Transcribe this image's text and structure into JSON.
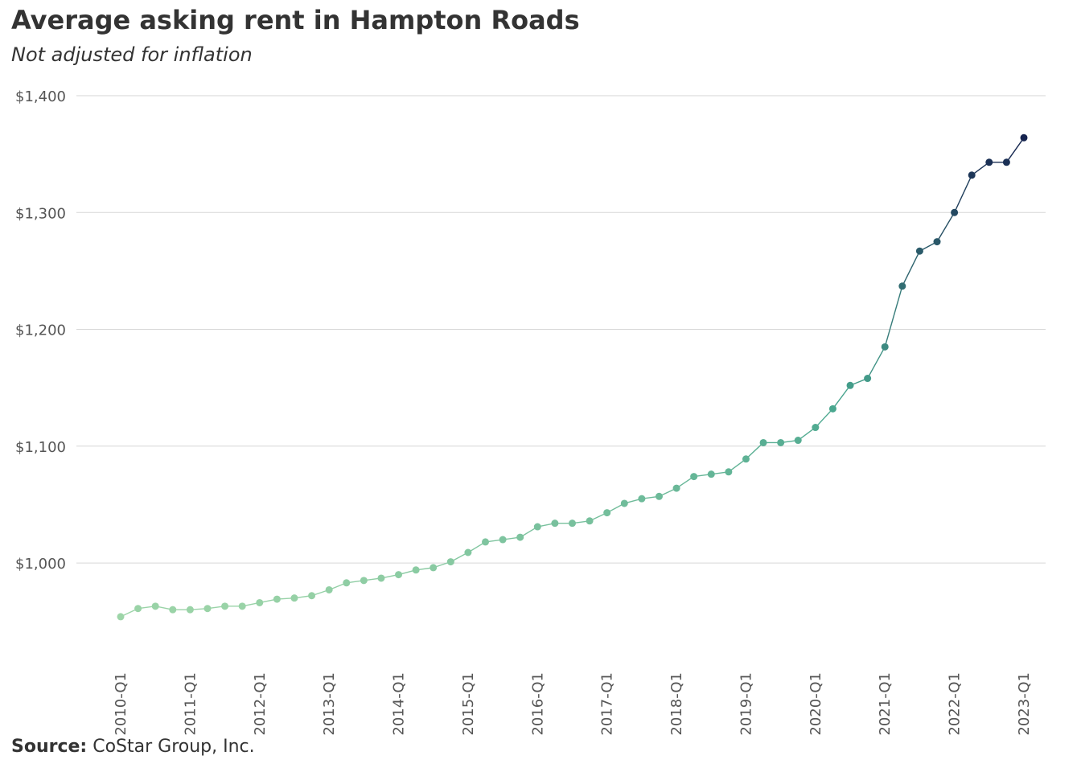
{
  "title": "Average asking rent in Hampton Roads",
  "subtitle": "Not adjusted  for inflation",
  "source_label": "Source:",
  "source_text": "CoStar Group, Inc.",
  "chart_data": {
    "type": "line",
    "title": "Average asking rent in Hampton Roads",
    "subtitle": "Not adjusted  for inflation",
    "xlabel": "",
    "ylabel": "",
    "ylim": [
      914,
      1400
    ],
    "yticks": [
      1000,
      1100,
      1200,
      1300,
      1400
    ],
    "ytick_labels": [
      "$1,000",
      "$1,100",
      "$1,200",
      "$1,300",
      "$1,400"
    ],
    "xtick_labels": [
      "2010-Q1",
      "2011-Q1",
      "2012-Q1",
      "2013-Q1",
      "2014-Q1",
      "2015-Q1",
      "2016-Q1",
      "2017-Q1",
      "2018-Q1",
      "2019-Q1",
      "2020-Q1",
      "2021-Q1",
      "2022-Q1",
      "2023-Q1"
    ],
    "grid": "horizontal",
    "legend": "none",
    "colors": {
      "start": "#9dd5a8",
      "mid": "#47a58e",
      "end": "#16244f",
      "line": "#2e7d7b",
      "grid": "#d6d6d6"
    },
    "x": [
      "2010-Q1",
      "2010-Q2",
      "2010-Q3",
      "2010-Q4",
      "2011-Q1",
      "2011-Q2",
      "2011-Q3",
      "2011-Q4",
      "2012-Q1",
      "2012-Q2",
      "2012-Q3",
      "2012-Q4",
      "2013-Q1",
      "2013-Q2",
      "2013-Q3",
      "2013-Q4",
      "2014-Q1",
      "2014-Q2",
      "2014-Q3",
      "2014-Q4",
      "2015-Q1",
      "2015-Q2",
      "2015-Q3",
      "2015-Q4",
      "2016-Q1",
      "2016-Q2",
      "2016-Q3",
      "2016-Q4",
      "2017-Q1",
      "2017-Q2",
      "2017-Q3",
      "2017-Q4",
      "2018-Q1",
      "2018-Q2",
      "2018-Q3",
      "2018-Q4",
      "2019-Q1",
      "2019-Q2",
      "2019-Q3",
      "2019-Q4",
      "2020-Q1",
      "2020-Q2",
      "2020-Q3",
      "2020-Q4",
      "2021-Q1",
      "2021-Q2",
      "2021-Q3",
      "2021-Q4",
      "2022-Q1",
      "2022-Q2",
      "2022-Q3",
      "2022-Q4",
      "2023-Q1"
    ],
    "values": [
      954,
      961,
      963,
      960,
      960,
      961,
      963,
      963,
      966,
      969,
      970,
      972,
      977,
      983,
      985,
      987,
      990,
      994,
      996,
      1001,
      1009,
      1018,
      1020,
      1022,
      1031,
      1034,
      1034,
      1036,
      1043,
      1051,
      1055,
      1057,
      1064,
      1074,
      1076,
      1078,
      1089,
      1103,
      1103,
      1105,
      1116,
      1132,
      1152,
      1158,
      1185,
      1237,
      1267,
      1275,
      1300,
      1332,
      1343,
      1343,
      1364
    ]
  }
}
